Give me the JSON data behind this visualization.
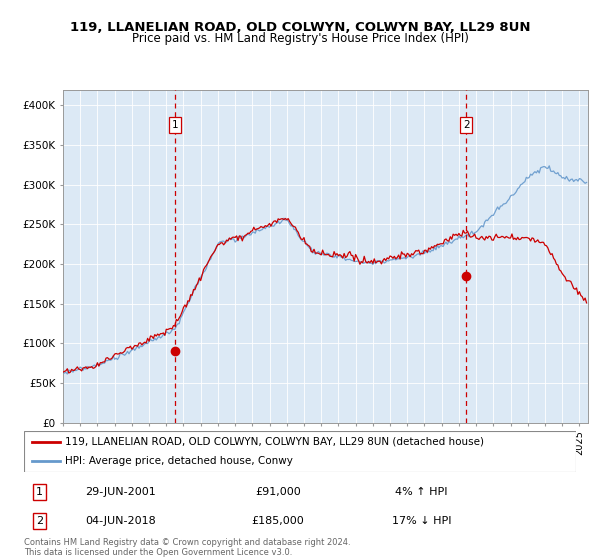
{
  "title1": "119, LLANELIAN ROAD, OLD COLWYN, COLWYN BAY, LL29 8UN",
  "title2": "Price paid vs. HM Land Registry's House Price Index (HPI)",
  "bg_color": "#dce9f5",
  "sale1_year": 2001.5,
  "sale1_price": 91000,
  "sale2_year": 2018.42,
  "sale2_price": 185000,
  "legend_line1": "119, LLANELIAN ROAD, OLD COLWYN, COLWYN BAY, LL29 8UN (detached house)",
  "legend_line2": "HPI: Average price, detached house, Conwy",
  "note1_date": "29-JUN-2001",
  "note1_price": "£91,000",
  "note1_hpi": "4% ↑ HPI",
  "note2_date": "04-JUN-2018",
  "note2_price": "£185,000",
  "note2_hpi": "17% ↓ HPI",
  "footer": "Contains HM Land Registry data © Crown copyright and database right 2024.\nThis data is licensed under the Open Government Licence v3.0.",
  "red_color": "#cc0000",
  "blue_color": "#6699cc",
  "vline_color": "#cc0000",
  "ylim_max": 420000,
  "ytick_vals": [
    0,
    50000,
    100000,
    150000,
    200000,
    250000,
    300000,
    350000,
    400000
  ],
  "ytick_labels": [
    "£0",
    "£50K",
    "£100K",
    "£150K",
    "£200K",
    "£250K",
    "£300K",
    "£350K",
    "£400K"
  ],
  "xmin": 1995,
  "xmax": 2025.5
}
